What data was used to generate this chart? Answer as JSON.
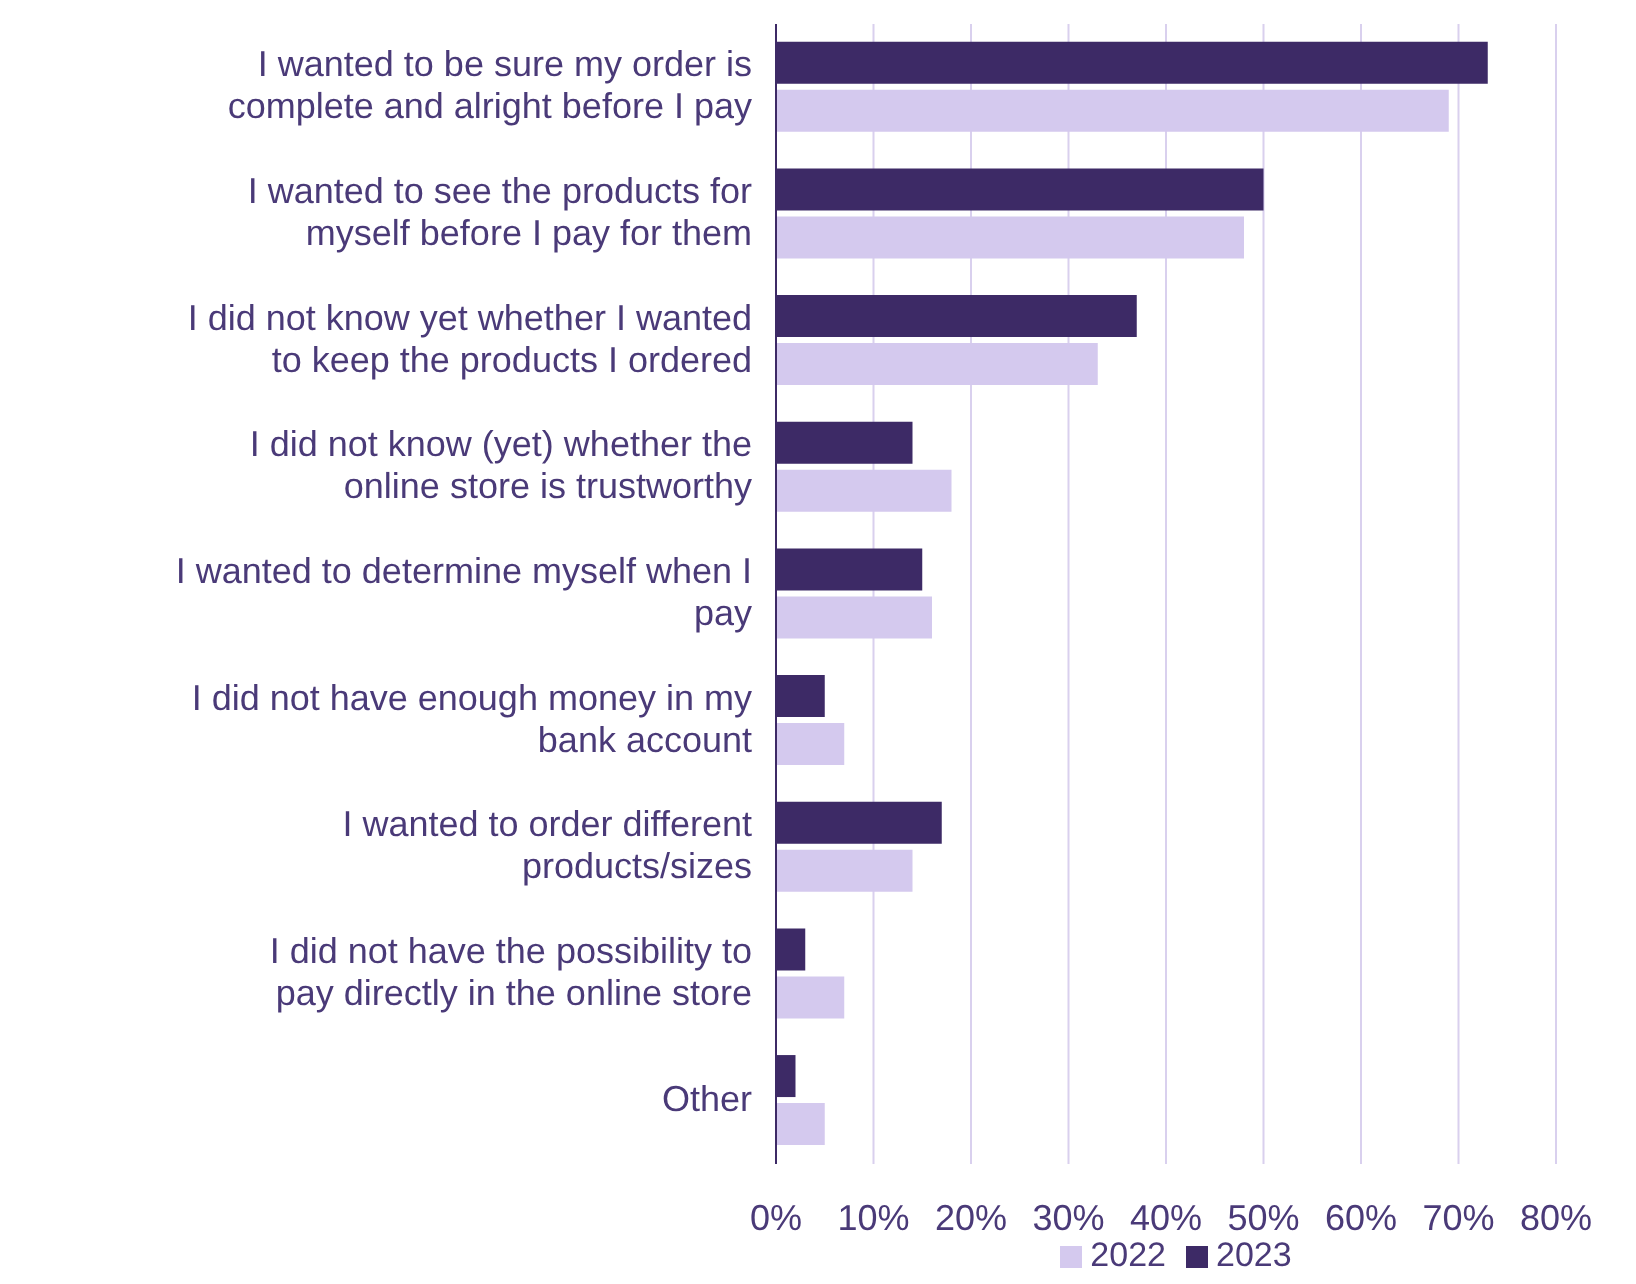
{
  "chart_data": {
    "type": "bar",
    "orientation": "horizontal",
    "categories": [
      "I wanted to be sure my order is complete and alright before I pay",
      "I wanted to see the products for myself before I pay for them",
      "I did not know yet whether I wanted to keep the products I ordered",
      "I did not know (yet) whether the online store is trustworthy",
      "I wanted to determine myself when I pay",
      "I did not have enough money in my bank account",
      "I wanted to order different products/sizes",
      "I did not have the possibility to pay directly in the online store",
      "Other"
    ],
    "series": [
      {
        "name": "2023",
        "color": "#3d2a66",
        "values": [
          73,
          50,
          37,
          14,
          15,
          5,
          17,
          3,
          2
        ]
      },
      {
        "name": "2022",
        "color": "#d4c9ee",
        "values": [
          69,
          48,
          33,
          18,
          16,
          7,
          14,
          7,
          5
        ]
      }
    ],
    "xlim": [
      0,
      80
    ],
    "xticks": [
      {
        "value": 0,
        "label": "0%"
      },
      {
        "value": 10,
        "label": "10%"
      },
      {
        "value": 20,
        "label": "20%"
      },
      {
        "value": 30,
        "label": "30%"
      },
      {
        "value": 40,
        "label": "40%"
      },
      {
        "value": 50,
        "label": "50%"
      },
      {
        "value": 60,
        "label": "60%"
      },
      {
        "value": 70,
        "label": "70%"
      },
      {
        "value": 80,
        "label": "80%"
      }
    ],
    "grid": "x",
    "legend": "bottom"
  }
}
